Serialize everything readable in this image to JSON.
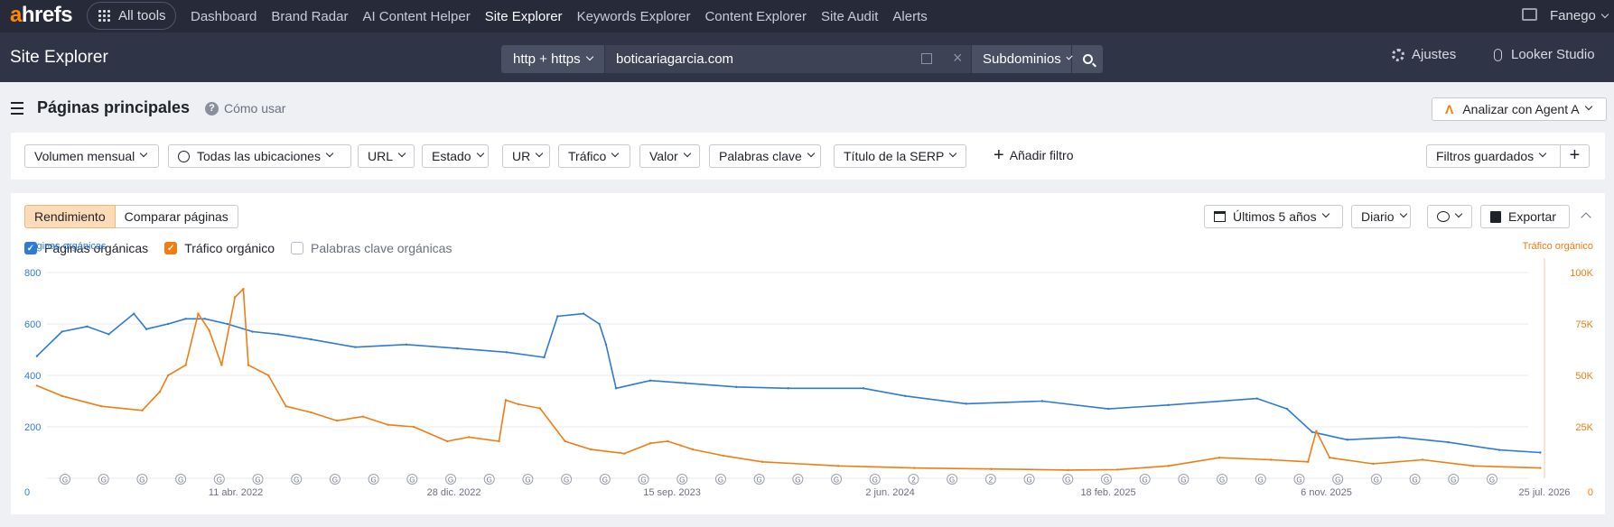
{
  "topnav": {
    "logo_a": "a",
    "logo_rest": "hrefs",
    "all_tools": "All tools",
    "links": [
      "Dashboard",
      "Brand Radar",
      "AI Content Helper",
      "Site Explorer",
      "Keywords Explorer",
      "Content Explorer",
      "Site Audit",
      "Alerts"
    ],
    "active_link": "Site Explorer",
    "user": "Fanego"
  },
  "subheader": {
    "title": "Site Explorer",
    "protocol": "http + https",
    "url": "boticariagarcia.com",
    "mode": "Subdominios",
    "settings": "Ajustes",
    "looker": "Looker Studio"
  },
  "page": {
    "title": "Páginas principales",
    "how_to": "Cómo usar",
    "agent": "Analizar con Agent A"
  },
  "filters": {
    "items": [
      "Volumen mensual",
      "Todas las ubicaciones",
      "URL",
      "Estado",
      "UR",
      "Tráfico",
      "Valor",
      "Palabras clave",
      "Título de la SERP"
    ],
    "add": "Añadir filtro",
    "saved": "Filtros guardados"
  },
  "chart_panel": {
    "tab_performance": "Rendimiento",
    "tab_compare": "Comparar páginas",
    "period": "Últimos 5 años",
    "granularity": "Diario",
    "export": "Exportar",
    "check_pages": "Páginas orgánicas",
    "check_traffic": "Tráfico orgánico",
    "check_keywords": "Palabras clave orgánicas"
  },
  "colors": {
    "pages": "#2f7ad6",
    "traffic": "#f07d13",
    "accent": "#ff8800",
    "nav_bg": "#262a39"
  },
  "chart_data": {
    "type": "line",
    "left_axis_label": "Páginas orgánicas",
    "right_axis_label": "Tráfico orgánico",
    "left_ticks": [
      "0",
      "200",
      "400",
      "600",
      "800"
    ],
    "right_ticks": [
      "0",
      "25K",
      "50K",
      "75K",
      "100K"
    ],
    "ylim_left": [
      0,
      800
    ],
    "ylim_right": [
      0,
      100000
    ],
    "x_ticks": [
      "11 abr. 2022",
      "28 dic. 2022",
      "15 sep. 2023",
      "2 jun. 2024",
      "18 feb. 2025",
      "6 nov. 2025",
      "25 jul. 2026"
    ],
    "x_tick_dates": [
      "2022-04-11",
      "2022-12-28",
      "2023-09-15",
      "2024-06-02",
      "2025-02-18",
      "2025-11-06",
      "2026-07-25"
    ],
    "xlim": [
      "2021-08-01",
      "2026-07-25"
    ],
    "grid": true,
    "series": [
      {
        "name": "Páginas orgánicas",
        "axis": "left",
        "dates": [
          "2021-08-16",
          "2021-09-15",
          "2021-10-15",
          "2021-11-10",
          "2021-12-10",
          "2021-12-25",
          "2022-01-20",
          "2022-02-10",
          "2022-03-05",
          "2022-04-01",
          "2022-05-01",
          "2022-06-01",
          "2022-07-10",
          "2022-09-01",
          "2022-11-01",
          "2023-01-01",
          "2023-03-01",
          "2023-04-15",
          "2023-05-01",
          "2023-06-01",
          "2023-06-20",
          "2023-06-28",
          "2023-07-10",
          "2023-08-20",
          "2023-10-01",
          "2023-12-01",
          "2024-02-01",
          "2024-05-01",
          "2024-06-20",
          "2024-09-01",
          "2024-12-01",
          "2025-02-18",
          "2025-05-01",
          "2025-08-15",
          "2025-09-20",
          "2025-10-20",
          "2025-12-01",
          "2026-02-01",
          "2026-04-01",
          "2026-06-01",
          "2026-07-20"
        ],
        "values": [
          475,
          570,
          590,
          560,
          640,
          580,
          600,
          620,
          620,
          600,
          570,
          560,
          540,
          510,
          520,
          505,
          490,
          470,
          630,
          640,
          600,
          520,
          350,
          380,
          370,
          355,
          350,
          350,
          320,
          290,
          300,
          270,
          285,
          310,
          270,
          180,
          150,
          160,
          140,
          110,
          100
        ]
      },
      {
        "name": "Tráfico orgánico",
        "axis": "right",
        "dates": [
          "2021-08-16",
          "2021-09-15",
          "2021-11-01",
          "2021-12-20",
          "2022-01-10",
          "2022-01-20",
          "2022-02-10",
          "2022-02-25",
          "2022-03-10",
          "2022-03-25",
          "2022-04-10",
          "2022-04-20",
          "2022-04-26",
          "2022-05-20",
          "2022-06-10",
          "2022-07-10",
          "2022-08-10",
          "2022-09-10",
          "2022-10-10",
          "2022-11-10",
          "2022-12-20",
          "2023-01-15",
          "2023-02-20",
          "2023-02-28",
          "2023-03-15",
          "2023-04-10",
          "2023-05-10",
          "2023-06-10",
          "2023-07-20",
          "2023-08-20",
          "2023-09-10",
          "2023-09-25",
          "2023-10-10",
          "2023-11-15",
          "2024-01-01",
          "2024-04-01",
          "2024-07-01",
          "2024-10-01",
          "2025-01-01",
          "2025-03-01",
          "2025-05-01",
          "2025-07-01",
          "2025-09-01",
          "2025-10-15",
          "2025-10-25",
          "2025-11-10",
          "2026-01-01",
          "2026-03-01",
          "2026-05-01",
          "2026-07-20"
        ],
        "values": [
          45000,
          40000,
          35000,
          33000,
          42000,
          50000,
          55000,
          80000,
          72000,
          55000,
          88000,
          92000,
          55000,
          50000,
          35000,
          32000,
          28000,
          30000,
          26000,
          25000,
          18000,
          20000,
          18000,
          38000,
          36000,
          34000,
          18000,
          14000,
          12000,
          17000,
          18000,
          16000,
          14000,
          11000,
          8000,
          6000,
          5000,
          4500,
          4000,
          4200,
          6000,
          10000,
          9000,
          8000,
          23000,
          10000,
          7000,
          9000,
          6000,
          5000
        ]
      }
    ],
    "event_markers": [
      "G",
      "G",
      "G",
      "G",
      "G",
      "G",
      "G",
      "G",
      "G",
      "G",
      "G",
      "G",
      "G",
      "G",
      "G",
      "G",
      "G",
      "G",
      "G",
      "G",
      "G",
      "G",
      "2",
      "G",
      "2",
      "G",
      "G",
      "G",
      "G",
      "G",
      "G",
      "G",
      "G",
      "G",
      "G",
      "G",
      "G",
      "G"
    ]
  }
}
